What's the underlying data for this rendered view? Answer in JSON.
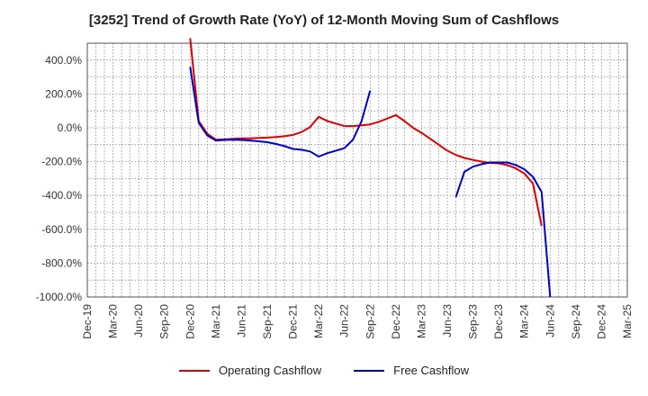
{
  "chart_data": {
    "type": "line",
    "title": "[3252]  Trend of Growth Rate (YoY) of 12-Month Moving Sum of Cashflows",
    "xlabel": "",
    "ylabel": "",
    "x_tick_labels": [
      "Dec-19",
      "Mar-20",
      "Jun-20",
      "Sep-20",
      "Dec-20",
      "Mar-21",
      "Jun-21",
      "Sep-21",
      "Dec-21",
      "Mar-22",
      "Jun-22",
      "Sep-22",
      "Dec-22",
      "Mar-23",
      "Jun-23",
      "Sep-23",
      "Dec-23",
      "Mar-24",
      "Jun-24",
      "Sep-24",
      "Dec-24",
      "Mar-25"
    ],
    "y_tick_labels": [
      "400.0%",
      "200.0%",
      "0.0%",
      "-200.0%",
      "-400.0%",
      "-600.0%",
      "-800.0%",
      "-1000.0%"
    ],
    "y_ticks": [
      400,
      200,
      0,
      -200,
      -400,
      -600,
      -800,
      -1000
    ],
    "ylim": [
      -1000,
      500
    ],
    "grid": true,
    "legend_position": "bottom",
    "series": [
      {
        "name": "Operating Cashflow",
        "color": "#e00000",
        "points": [
          [
            "Dec-20",
            530
          ],
          [
            "Jan-21",
            40
          ],
          [
            "Feb-21",
            -35
          ],
          [
            "Mar-21",
            -70
          ],
          [
            "Apr-21",
            -68
          ],
          [
            "May-21",
            -65
          ],
          [
            "Jun-21",
            -62
          ],
          [
            "Jul-21",
            -62
          ],
          [
            "Aug-21",
            -60
          ],
          [
            "Sep-21",
            -58
          ],
          [
            "Oct-21",
            -55
          ],
          [
            "Nov-21",
            -50
          ],
          [
            "Dec-21",
            -42
          ],
          [
            "Jan-22",
            -25
          ],
          [
            "Feb-22",
            5
          ],
          [
            "Mar-22",
            65
          ],
          [
            "Apr-22",
            40
          ],
          [
            "May-22",
            25
          ],
          [
            "Jun-22",
            10
          ],
          [
            "Jul-22",
            10
          ],
          [
            "Aug-22",
            15
          ],
          [
            "Sep-22",
            20
          ],
          [
            "Oct-22",
            35
          ],
          [
            "Nov-22",
            55
          ],
          [
            "Dec-22",
            75
          ],
          [
            "Jan-23",
            40
          ],
          [
            "Feb-23",
            0
          ],
          [
            "Mar-23",
            -30
          ],
          [
            "Apr-23",
            -65
          ],
          [
            "May-23",
            -100
          ],
          [
            "Jun-23",
            -135
          ],
          [
            "Jul-23",
            -160
          ],
          [
            "Aug-23",
            -178
          ],
          [
            "Sep-23",
            -190
          ],
          [
            "Oct-23",
            -200
          ],
          [
            "Nov-23",
            -208
          ],
          [
            "Dec-23",
            -210
          ],
          [
            "Jan-24",
            -220
          ],
          [
            "Feb-24",
            -240
          ],
          [
            "Mar-24",
            -270
          ],
          [
            "Apr-24",
            -330
          ],
          [
            "May-24",
            -580
          ]
        ]
      },
      {
        "name": "Free Cashflow",
        "color": "#0000cc",
        "points": [
          [
            "Dec-20",
            360
          ],
          [
            "Jan-21",
            30
          ],
          [
            "Feb-21",
            -45
          ],
          [
            "Mar-21",
            -75
          ],
          [
            "Apr-21",
            -72
          ],
          [
            "May-21",
            -70
          ],
          [
            "Jun-21",
            -72
          ],
          [
            "Jul-21",
            -75
          ],
          [
            "Aug-21",
            -80
          ],
          [
            "Sep-21",
            -85
          ],
          [
            "Oct-21",
            -95
          ],
          [
            "Nov-21",
            -108
          ],
          [
            "Dec-21",
            -125
          ],
          [
            "Jan-22",
            -130
          ],
          [
            "Feb-22",
            -140
          ],
          [
            "Mar-22",
            -170
          ],
          [
            "Apr-22",
            -150
          ],
          [
            "May-22",
            -135
          ],
          [
            "Jun-22",
            -120
          ],
          [
            "Jul-22",
            -70
          ],
          [
            "Aug-22",
            40
          ],
          [
            "Sep-22",
            220
          ],
          null,
          [
            "Jul-23",
            -410
          ],
          [
            "Aug-23",
            -260
          ],
          [
            "Sep-23",
            -230
          ],
          [
            "Oct-23",
            -215
          ],
          [
            "Nov-23",
            -205
          ],
          [
            "Dec-23",
            -205
          ],
          [
            "Jan-24",
            -205
          ],
          [
            "Feb-24",
            -220
          ],
          [
            "Mar-24",
            -245
          ],
          [
            "Apr-24",
            -290
          ],
          [
            "May-24",
            -380
          ],
          [
            "Jun-24",
            -1000
          ]
        ]
      }
    ]
  }
}
